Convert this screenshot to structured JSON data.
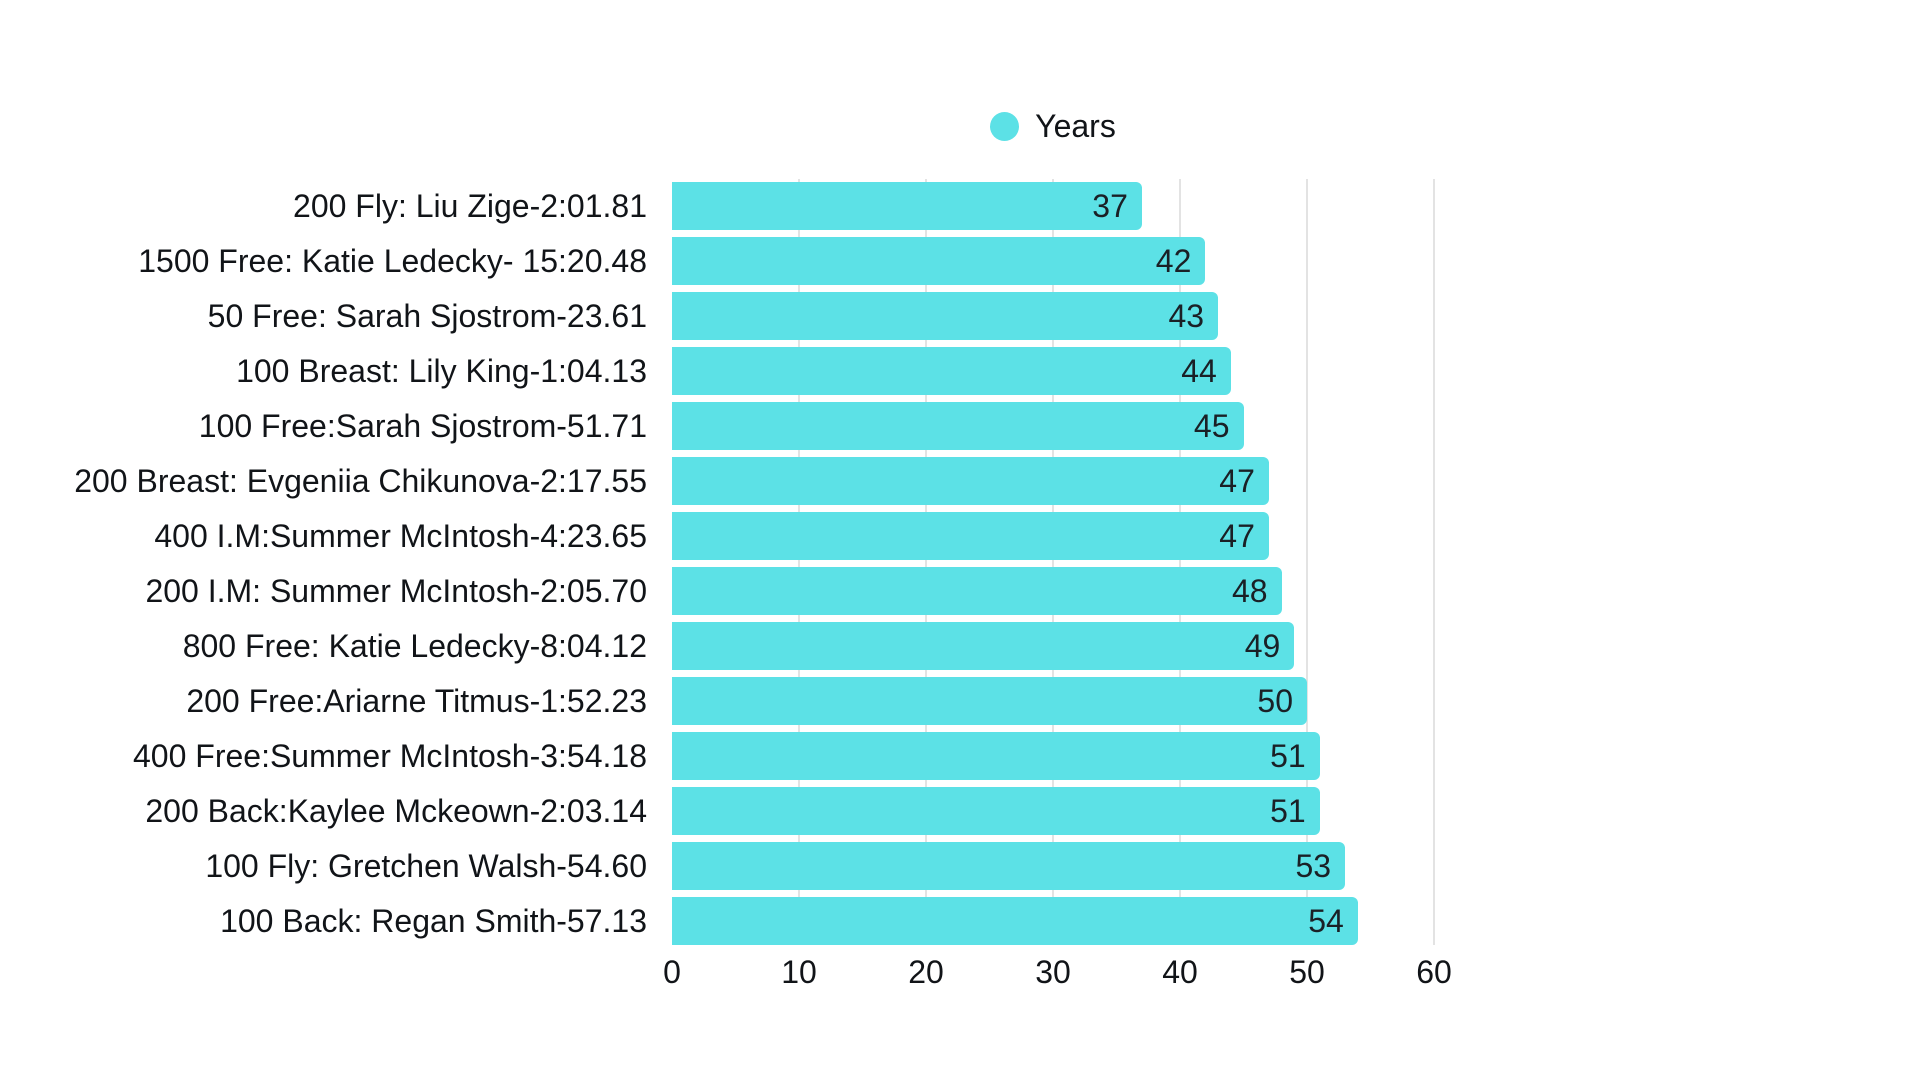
{
  "chart_data": {
    "type": "bar",
    "orientation": "horizontal",
    "title": "",
    "legend": [
      {
        "label": "Years",
        "color": "#5CE1E6"
      }
    ],
    "legend_position": "top-center",
    "categories": [
      "200 Fly: Liu Zige-2:01.81",
      "1500 Free: Katie Ledecky- 15:20.48",
      "50 Free: Sarah Sjostrom-23.61",
      "100 Breast: Lily King-1:04.13",
      "100 Free:Sarah Sjostrom-51.71",
      "200 Breast: Evgeniia Chikunova-2:17.55",
      "400 I.M:Summer McIntosh-4:23.65",
      "200 I.M: Summer McIntosh-2:05.70",
      "800 Free: Katie Ledecky-8:04.12",
      "200 Free:Ariarne Titmus-1:52.23",
      "400 Free:Summer McIntosh-3:54.18",
      "200 Back:Kaylee Mckeown-2:03.14",
      "100 Fly: Gretchen Walsh-54.60",
      "100 Back: Regan Smith-57.13"
    ],
    "values": [
      37,
      42,
      43,
      44,
      45,
      47,
      47,
      48,
      49,
      50,
      51,
      51,
      53,
      54
    ],
    "xlabel": "",
    "ylabel": "",
    "xlim": [
      0,
      60
    ],
    "x_ticks": [
      0,
      10,
      20,
      30,
      40,
      50,
      60
    ],
    "grid": "vertical",
    "bar_color": "#5CE1E6",
    "value_label_color": "#1a2026",
    "gridline_color": "#e3e3e3",
    "background_color": "#ffffff"
  }
}
